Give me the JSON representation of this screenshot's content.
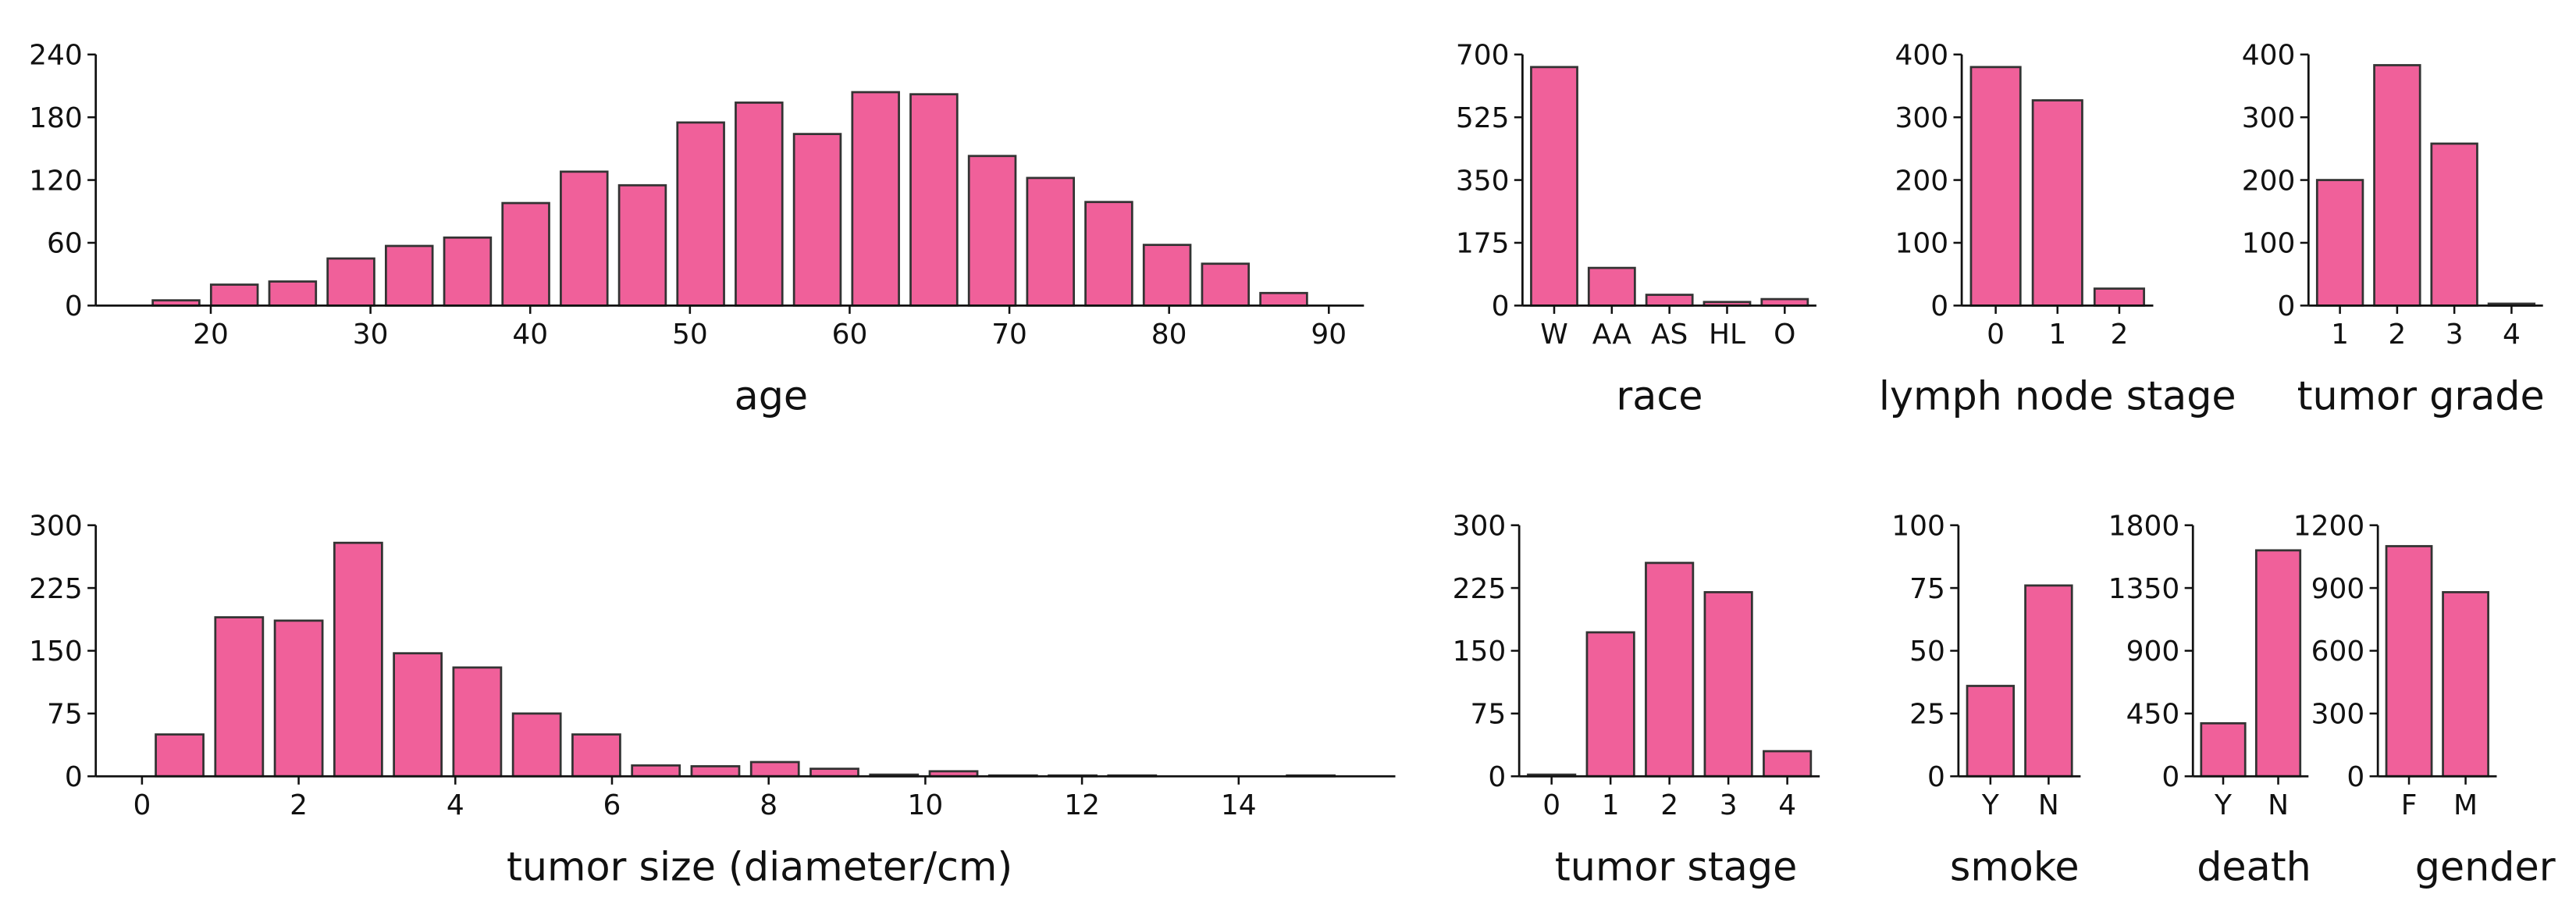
{
  "chart_data": [
    {
      "type": "histogram",
      "xlabel": "age",
      "bins": [
        16,
        19.65,
        23.3,
        26.95,
        30.6,
        34.25,
        37.9,
        41.55,
        45.2,
        48.85,
        52.5,
        56.15,
        59.8,
        63.45,
        67.1,
        70.75,
        74.4,
        78.05,
        81.7,
        85.35,
        89
      ],
      "values": [
        5,
        20,
        23,
        45,
        57,
        65,
        98,
        128,
        115,
        175,
        194,
        164,
        204,
        202,
        143,
        122,
        99,
        58,
        40,
        12
      ],
      "color": "#f0609a",
      "xlim": [
        12.8,
        92.2
      ],
      "xticks": [
        20,
        30,
        40,
        50,
        60,
        70,
        80,
        90
      ],
      "ylim": [
        0,
        240
      ],
      "yticks": [
        0,
        60,
        120,
        180,
        240
      ]
    },
    {
      "type": "bar",
      "xlabel": "race",
      "categories": [
        "W",
        "AA",
        "AS",
        "HL",
        "O"
      ],
      "values": [
        665,
        105,
        30,
        10,
        18
      ],
      "color": "#f0609a",
      "ylim": [
        0,
        700
      ],
      "yticks": [
        0,
        175,
        350,
        525,
        700
      ]
    },
    {
      "type": "bar",
      "xlabel": "lymph node stage",
      "categories": [
        "0",
        "1",
        "2"
      ],
      "values": [
        380,
        327,
        27
      ],
      "color": "#f0609a",
      "ylim": [
        0,
        400
      ],
      "yticks": [
        0,
        100,
        200,
        300,
        400
      ]
    },
    {
      "type": "bar",
      "xlabel": "tumor grade",
      "categories": [
        "1",
        "2",
        "3",
        "4"
      ],
      "values": [
        200,
        383,
        258,
        3
      ],
      "color": "#f0609a",
      "ylim": [
        0,
        400
      ],
      "yticks": [
        0,
        100,
        200,
        300,
        400
      ]
    },
    {
      "type": "histogram",
      "xlabel": "tumor size (diameter/cm)",
      "bins": [
        0.1,
        0.86,
        1.62,
        2.38,
        3.14,
        3.9,
        4.66,
        5.42,
        6.18,
        6.94,
        7.7,
        8.46,
        9.22,
        9.98,
        10.74,
        11.5,
        12.26,
        13.02,
        13.78,
        14.54,
        15.3
      ],
      "values": [
        50,
        190,
        186,
        279,
        147,
        130,
        75,
        50,
        13,
        12,
        17,
        9,
        2,
        6,
        1,
        1,
        1,
        0,
        0,
        1
      ],
      "color": "#f0609a",
      "xlim": [
        -0.59,
        16.0
      ],
      "xticks": [
        0,
        2,
        4,
        6,
        8,
        10,
        12,
        14
      ],
      "ylim": [
        0,
        300
      ],
      "yticks": [
        0,
        75,
        150,
        225,
        300
      ]
    },
    {
      "type": "bar",
      "xlabel": "tumor stage",
      "categories": [
        "0",
        "1",
        "2",
        "3",
        "4"
      ],
      "values": [
        2,
        172,
        255,
        220,
        30
      ],
      "color": "#f0609a",
      "ylim": [
        0,
        300
      ],
      "yticks": [
        0,
        75,
        150,
        225,
        300
      ]
    },
    {
      "type": "bar",
      "xlabel": "smoke",
      "categories": [
        "Y",
        "N"
      ],
      "values": [
        36,
        76
      ],
      "color": "#f0609a",
      "ylim": [
        0,
        100
      ],
      "yticks": [
        0,
        25,
        50,
        75,
        100
      ]
    },
    {
      "type": "bar",
      "xlabel": "death",
      "categories": [
        "Y",
        "N"
      ],
      "values": [
        380,
        1620
      ],
      "color": "#f0609a",
      "ylim": [
        0,
        1800
      ],
      "yticks": [
        0,
        450,
        900,
        1350,
        1800
      ]
    },
    {
      "type": "bar",
      "xlabel": "gender",
      "categories": [
        "F",
        "M"
      ],
      "values": [
        1100,
        880
      ],
      "color": "#f0609a",
      "ylim": [
        0,
        1200
      ],
      "yticks": [
        0,
        300,
        600,
        900,
        1200
      ]
    }
  ]
}
